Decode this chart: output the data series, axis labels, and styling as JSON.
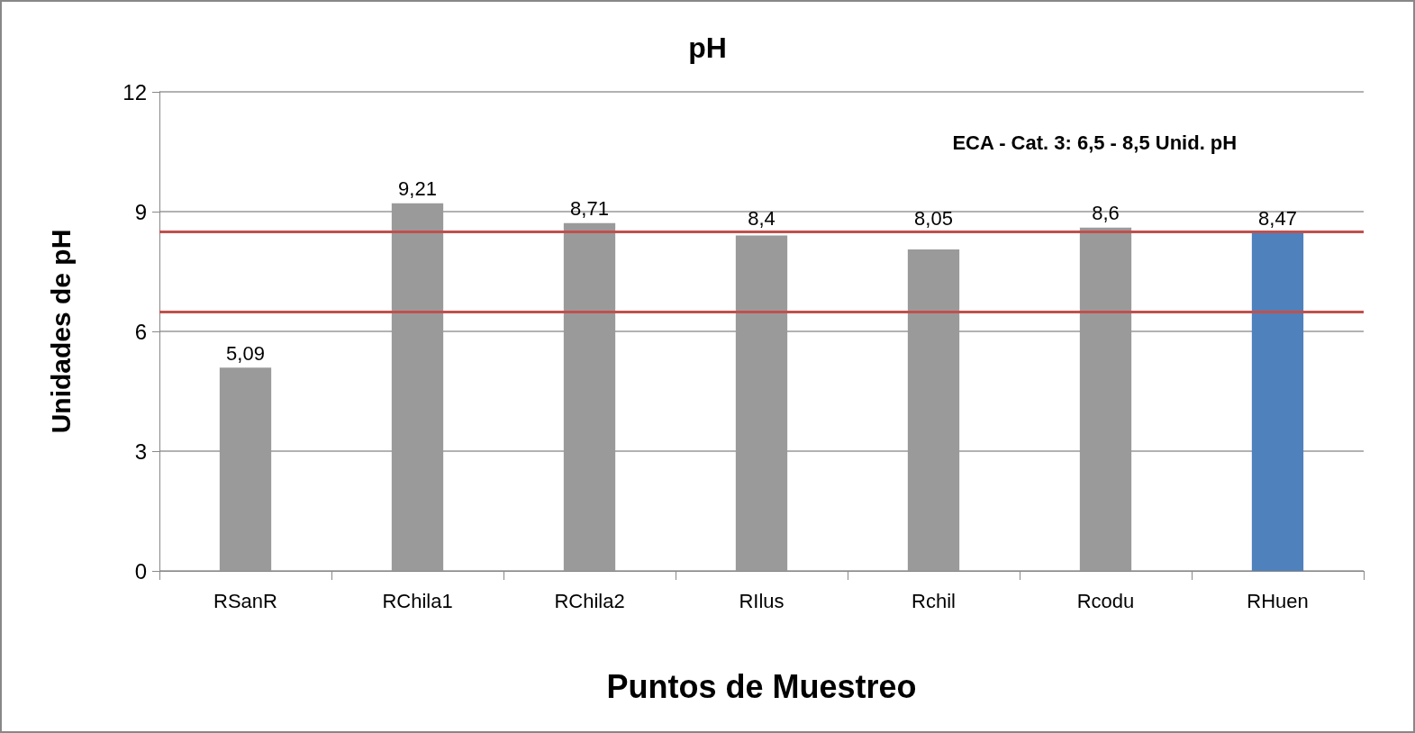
{
  "chart_data": {
    "type": "bar",
    "title": "pH",
    "xlabel": "Puntos de Muestreo",
    "ylabel": "Unidades de pH",
    "categories": [
      "RSanR",
      "RChila1",
      "RChila2",
      "RIlus",
      "Rchil",
      "Rcodu",
      "RHuen"
    ],
    "values": [
      5.09,
      9.21,
      8.71,
      8.4,
      8.05,
      8.6,
      8.47
    ],
    "value_labels": [
      "5,09",
      "9,21",
      "8,71",
      "8,4",
      "8,05",
      "8,6",
      "8,47"
    ],
    "colors": [
      "#9a9a9a",
      "#9a9a9a",
      "#9a9a9a",
      "#9a9a9a",
      "#9a9a9a",
      "#9a9a9a",
      "#4f81bd"
    ],
    "ylim": [
      0,
      12
    ],
    "yticks": [
      0,
      3,
      6,
      9,
      12
    ],
    "grid": "y",
    "ref_lines": [
      {
        "axis": "y",
        "value": 6.5,
        "color": "#c0504d"
      },
      {
        "axis": "y",
        "value": 8.5,
        "color": "#c0504d"
      }
    ],
    "annotations": [
      "ECA - Cat. 3: 6,5 - 8,5 Unid. pH"
    ]
  }
}
